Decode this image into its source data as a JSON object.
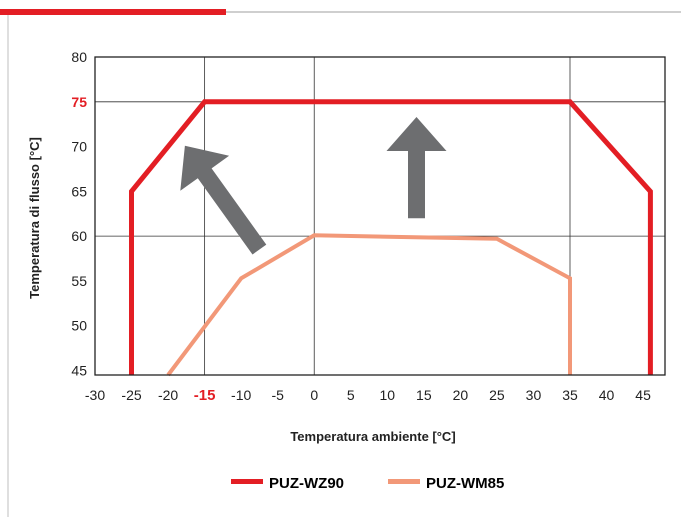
{
  "colors": {
    "accent_bar": "#e31e24",
    "frame_line": "#bfbfbf",
    "wz90": "#e31e24",
    "wm85": "#f29878",
    "arrow": "#6d6e70",
    "grid": "#333333",
    "text": "#222222",
    "highlight_tick": "#e31e24"
  },
  "chart_data": {
    "type": "line",
    "title": "",
    "xlabel": "Temperatura ambiente [°C]",
    "ylabel": "Temperatura di flusso [°C]",
    "xlim": [
      -30,
      48
    ],
    "ylim": [
      44.5,
      80
    ],
    "x_ticks": [
      "-30",
      "-25",
      "-20",
      "-15",
      "-10",
      "-5",
      "0",
      "5",
      "10",
      "15",
      "20",
      "25",
      "30",
      "35",
      "40",
      "45"
    ],
    "x_tick_values": [
      -30,
      -25,
      -20,
      -15,
      -10,
      -5,
      0,
      5,
      10,
      15,
      20,
      25,
      30,
      35,
      40,
      45
    ],
    "y_ticks": [
      "45",
      "50",
      "55",
      "60",
      "65",
      "70",
      "75",
      "80"
    ],
    "y_tick_values": [
      45,
      50,
      55,
      60,
      65,
      70,
      75,
      80
    ],
    "highlight_x_tick": "-15",
    "highlight_y_tick": "75",
    "gridlines": [
      {
        "orientation": "vertical",
        "value": -15
      },
      {
        "orientation": "vertical",
        "value": 0
      },
      {
        "orientation": "vertical",
        "value": 35
      },
      {
        "orientation": "horizontal",
        "value": 75
      },
      {
        "orientation": "horizontal",
        "value": 60
      }
    ],
    "series": [
      {
        "name": "PUZ-WZ90",
        "color": "#e31e24",
        "points": [
          [
            -25,
            44.5
          ],
          [
            -25,
            65
          ],
          [
            -15,
            75
          ],
          [
            35,
            75
          ],
          [
            46,
            65
          ],
          [
            46,
            44.5
          ]
        ]
      },
      {
        "name": "PUZ-WM85",
        "color": "#f29878",
        "points": [
          [
            -20,
            44.5
          ],
          [
            -10,
            55.3
          ],
          [
            0,
            60.1
          ],
          [
            25,
            59.7
          ],
          [
            35,
            55.3
          ],
          [
            35,
            44.5
          ]
        ]
      }
    ],
    "arrows": [
      {
        "direction": "up-left",
        "from": [
          -7.5,
          58.5
        ],
        "to": [
          -17.7,
          70.1
        ]
      },
      {
        "direction": "up",
        "from": [
          14,
          62
        ],
        "to": [
          14,
          73.3
        ]
      }
    ],
    "legend": {
      "placement": "bottom-center",
      "entries": [
        "PUZ-WZ90",
        "PUZ-WM85"
      ]
    }
  }
}
